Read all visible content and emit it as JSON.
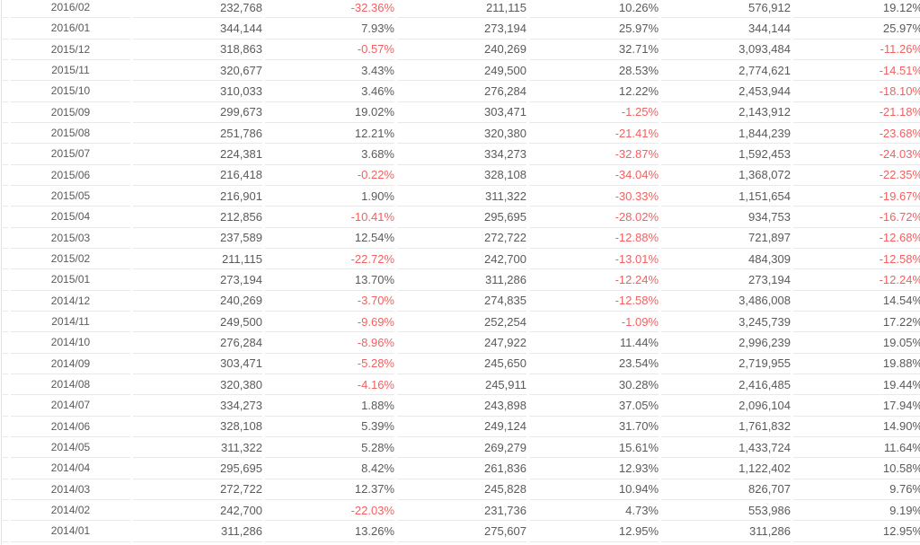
{
  "chart_data": {
    "type": "table",
    "visible_header": false,
    "columns": [
      "month",
      "value",
      "pct_change",
      "value_2",
      "pct_change_2",
      "cumulative_value",
      "cumulative_pct_change"
    ],
    "rows": [
      [
        "2016/02",
        "232,768",
        "-32.36%",
        "211,115",
        "10.26%",
        "576,912",
        "19.12%"
      ],
      [
        "2016/01",
        "344,144",
        "7.93%",
        "273,194",
        "25.97%",
        "344,144",
        "25.97%"
      ],
      [
        "2015/12",
        "318,863",
        "-0.57%",
        "240,269",
        "32.71%",
        "3,093,484",
        "-11.26%"
      ],
      [
        "2015/11",
        "320,677",
        "3.43%",
        "249,500",
        "28.53%",
        "2,774,621",
        "-14.51%"
      ],
      [
        "2015/10",
        "310,033",
        "3.46%",
        "276,284",
        "12.22%",
        "2,453,944",
        "-18.10%"
      ],
      [
        "2015/09",
        "299,673",
        "19.02%",
        "303,471",
        "-1.25%",
        "2,143,912",
        "-21.18%"
      ],
      [
        "2015/08",
        "251,786",
        "12.21%",
        "320,380",
        "-21.41%",
        "1,844,239",
        "-23.68%"
      ],
      [
        "2015/07",
        "224,381",
        "3.68%",
        "334,273",
        "-32.87%",
        "1,592,453",
        "-24.03%"
      ],
      [
        "2015/06",
        "216,418",
        "-0.22%",
        "328,108",
        "-34.04%",
        "1,368,072",
        "-22.35%"
      ],
      [
        "2015/05",
        "216,901",
        "1.90%",
        "311,322",
        "-30.33%",
        "1,151,654",
        "-19.67%"
      ],
      [
        "2015/04",
        "212,856",
        "-10.41%",
        "295,695",
        "-28.02%",
        "934,753",
        "-16.72%"
      ],
      [
        "2015/03",
        "237,589",
        "12.54%",
        "272,722",
        "-12.88%",
        "721,897",
        "-12.68%"
      ],
      [
        "2015/02",
        "211,115",
        "-22.72%",
        "242,700",
        "-13.01%",
        "484,309",
        "-12.58%"
      ],
      [
        "2015/01",
        "273,194",
        "13.70%",
        "311,286",
        "-12.24%",
        "273,194",
        "-12.24%"
      ],
      [
        "2014/12",
        "240,269",
        "-3.70%",
        "274,835",
        "-12.58%",
        "3,486,008",
        "14.54%"
      ],
      [
        "2014/11",
        "249,500",
        "-9.69%",
        "252,254",
        "-1.09%",
        "3,245,739",
        "17.22%"
      ],
      [
        "2014/10",
        "276,284",
        "-8.96%",
        "247,922",
        "11.44%",
        "2,996,239",
        "19.05%"
      ],
      [
        "2014/09",
        "303,471",
        "-5.28%",
        "245,650",
        "23.54%",
        "2,719,955",
        "19.88%"
      ],
      [
        "2014/08",
        "320,380",
        "-4.16%",
        "245,911",
        "30.28%",
        "2,416,485",
        "19.44%"
      ],
      [
        "2014/07",
        "334,273",
        "1.88%",
        "243,898",
        "37.05%",
        "2,096,104",
        "17.94%"
      ],
      [
        "2014/06",
        "328,108",
        "5.39%",
        "249,124",
        "31.70%",
        "1,761,832",
        "14.90%"
      ],
      [
        "2014/05",
        "311,322",
        "5.28%",
        "269,279",
        "15.61%",
        "1,433,724",
        "11.64%"
      ],
      [
        "2014/04",
        "295,695",
        "8.42%",
        "261,836",
        "12.93%",
        "1,122,402",
        "10.58%"
      ],
      [
        "2014/03",
        "272,722",
        "12.37%",
        "245,828",
        "10.94%",
        "826,707",
        "9.76%"
      ],
      [
        "2014/02",
        "242,700",
        "-22.03%",
        "231,736",
        "4.73%",
        "553,986",
        "9.19%"
      ],
      [
        "2014/01",
        "311,286",
        "13.26%",
        "275,607",
        "12.95%",
        "311,286",
        "12.95%"
      ]
    ]
  },
  "colors": {
    "text": "#5a5a5c",
    "negative_value": "#f45f5f",
    "row_border": "#e9e9e9",
    "background": "#ffffff",
    "left_edge_line": "#e3e3e3"
  }
}
